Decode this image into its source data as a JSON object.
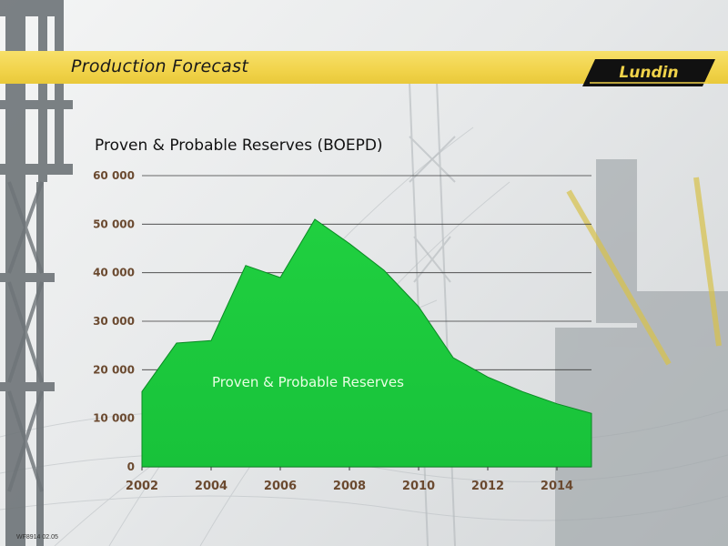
{
  "header": {
    "title": "Production Forecast",
    "logo_text": "Lundin"
  },
  "footer": {
    "code": "WF8914 02.05"
  },
  "colors": {
    "banner": "#f1d34a",
    "area_fill": "#18c23a",
    "area_stroke": "#0a8a24",
    "axis_label": "#6b4a30"
  },
  "chart_data": {
    "type": "area",
    "title": "Proven & Probable Reserves (BOEPD)",
    "xlabel": "",
    "ylabel": "",
    "x_ticks": [
      2002,
      2004,
      2006,
      2008,
      2010,
      2012,
      2014
    ],
    "y_ticks": [
      "0",
      "10 000",
      "20 000",
      "30 000",
      "40 000",
      "50 000",
      "60 000"
    ],
    "ylim": [
      0,
      60000
    ],
    "xlim": [
      2002,
      2015
    ],
    "grid": true,
    "series": [
      {
        "name": "Proven & Probable Reserves",
        "x": [
          2002,
          2003,
          2004,
          2005,
          2006,
          2007,
          2008,
          2009,
          2010,
          2011,
          2012,
          2013,
          2014,
          2015
        ],
        "values": [
          15500,
          25500,
          26000,
          41500,
          39000,
          51000,
          46000,
          40500,
          33000,
          22500,
          18500,
          15500,
          13000,
          11000
        ]
      }
    ]
  }
}
